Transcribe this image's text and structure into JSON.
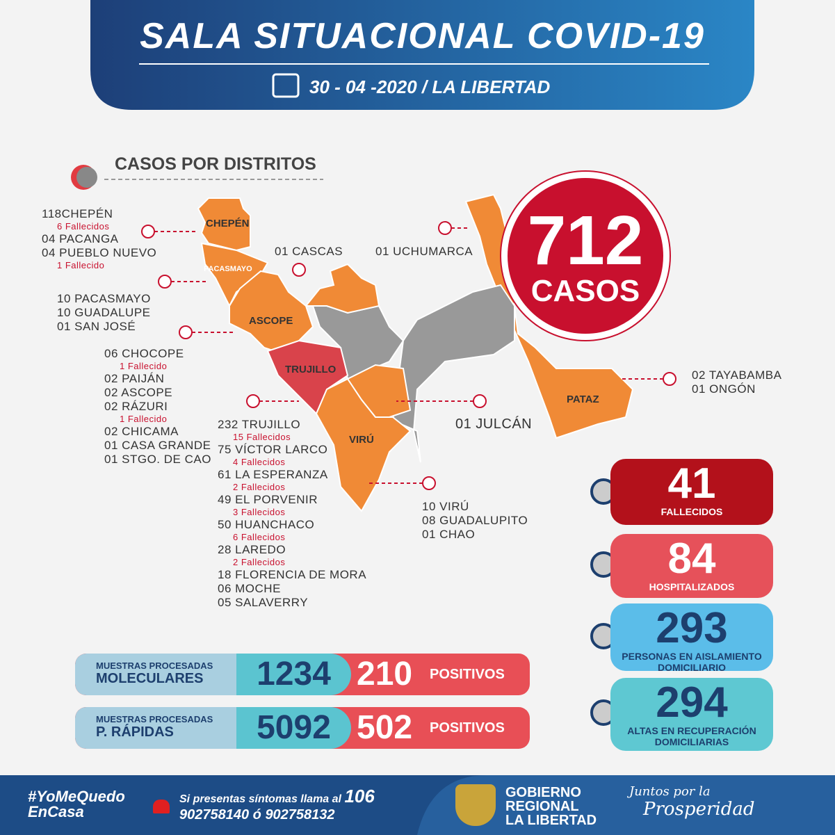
{
  "header": {
    "title": "SALA SITUACIONAL COVID-19",
    "date": "30 - 04 -2020 / LA LIBERTAD"
  },
  "section_title": "CASOS POR DISTRITOS",
  "total": {
    "value": 712,
    "label": "CASOS"
  },
  "map_labels": [
    "CHEPÉN",
    "PACASMAYO",
    "ASCOPE",
    "TRUJILLO",
    "VIRÚ",
    "PATAZ"
  ],
  "district_groups": [
    {
      "lines": [
        {
          "text": "118CHEPÉN",
          "deaths": "6  Fallecidos"
        },
        {
          "text": "04 PACANGA"
        },
        {
          "text": "04 PUEBLO NUEVO",
          "deaths": "1 Fallecido"
        }
      ]
    },
    {
      "lines": [
        {
          "text": "10 PACASMAYO"
        },
        {
          "text": "10 GUADALUPE"
        },
        {
          "text": "01 SAN JOSÉ"
        }
      ]
    },
    {
      "lines": [
        {
          "text": "06 CHOCOPE",
          "deaths": "1 Fallecido"
        },
        {
          "text": "02 PAIJÁN"
        },
        {
          "text": "02 ASCOPE"
        },
        {
          "text": "02 RÁZURI",
          "deaths": "1 Fallecido"
        },
        {
          "text": "02 CHICAMA"
        },
        {
          "text": "01 CASA GRANDE"
        },
        {
          "text": "01 STGO. DE CAO"
        }
      ]
    },
    {
      "lines": [
        {
          "text": "232 TRUJILLO",
          "deaths": "15 Fallecidos"
        },
        {
          "text": "75 VÍCTOR LARCO",
          "deaths": "4 Fallecidos"
        },
        {
          "text": "61 LA ESPERANZA",
          "deaths": "2 Fallecidos"
        },
        {
          "text": "49 EL PORVENIR",
          "deaths": "3 Fallecidos"
        },
        {
          "text": "50 HUANCHACO",
          "deaths": "6 Fallecidos"
        },
        {
          "text": "28 LAREDO",
          "deaths": "2 Fallecidos"
        },
        {
          "text": "18 FLORENCIA DE MORA"
        },
        {
          "text": "06 MOCHE"
        },
        {
          "text": "05 SALAVERRY"
        }
      ]
    },
    {
      "lines": [
        {
          "text": "10 VIRÚ"
        },
        {
          "text": "08 GUADALUPITO"
        },
        {
          "text": "01 CHAO"
        }
      ]
    },
    {
      "lines": [
        {
          "text": "01 CASCAS"
        }
      ]
    },
    {
      "lines": [
        {
          "text": "01 UCHUMARCA"
        }
      ]
    },
    {
      "lines": [
        {
          "text": "02 TAYABAMBA"
        },
        {
          "text": "01 ONGÓN"
        }
      ]
    },
    {
      "lines": [
        {
          "text": "01 JULCÁN"
        }
      ]
    }
  ],
  "stats": [
    {
      "value": 41,
      "label": [
        "FALLECIDOS"
      ]
    },
    {
      "value": 84,
      "label": [
        "HOSPITALIZADOS"
      ]
    },
    {
      "value": 293,
      "label": [
        "PERSONAS EN AISLAMIENTO",
        "DOMICILIARIO"
      ]
    },
    {
      "value": 294,
      "label": [
        "ALTAS EN RECUPERACIÓN",
        "DOMICILIARIAS"
      ]
    }
  ],
  "samples": [
    {
      "caption": "MUESTRAS PROCESADAS",
      "kind": "MOLECULARES",
      "count": 1234,
      "positives": 210,
      "positives_label": "POSITIVOS"
    },
    {
      "caption": "MUESTRAS PROCESADAS",
      "kind": "P. RÁPIDAS",
      "count": 5092,
      "positives": 502,
      "positives_label": "POSITIVOS"
    }
  ],
  "footer": {
    "hashtag": [
      "#YoMeQuedo",
      "EnCasa"
    ],
    "call": "Si presentas síntomas llama al",
    "hotline": "106",
    "phones": "902758140 ó 902758132",
    "government": [
      "GOBIERNO",
      "REGIONAL",
      "LA LIBERTAD"
    ],
    "slogan": [
      "Juntos por la",
      "Prosperidad"
    ]
  }
}
